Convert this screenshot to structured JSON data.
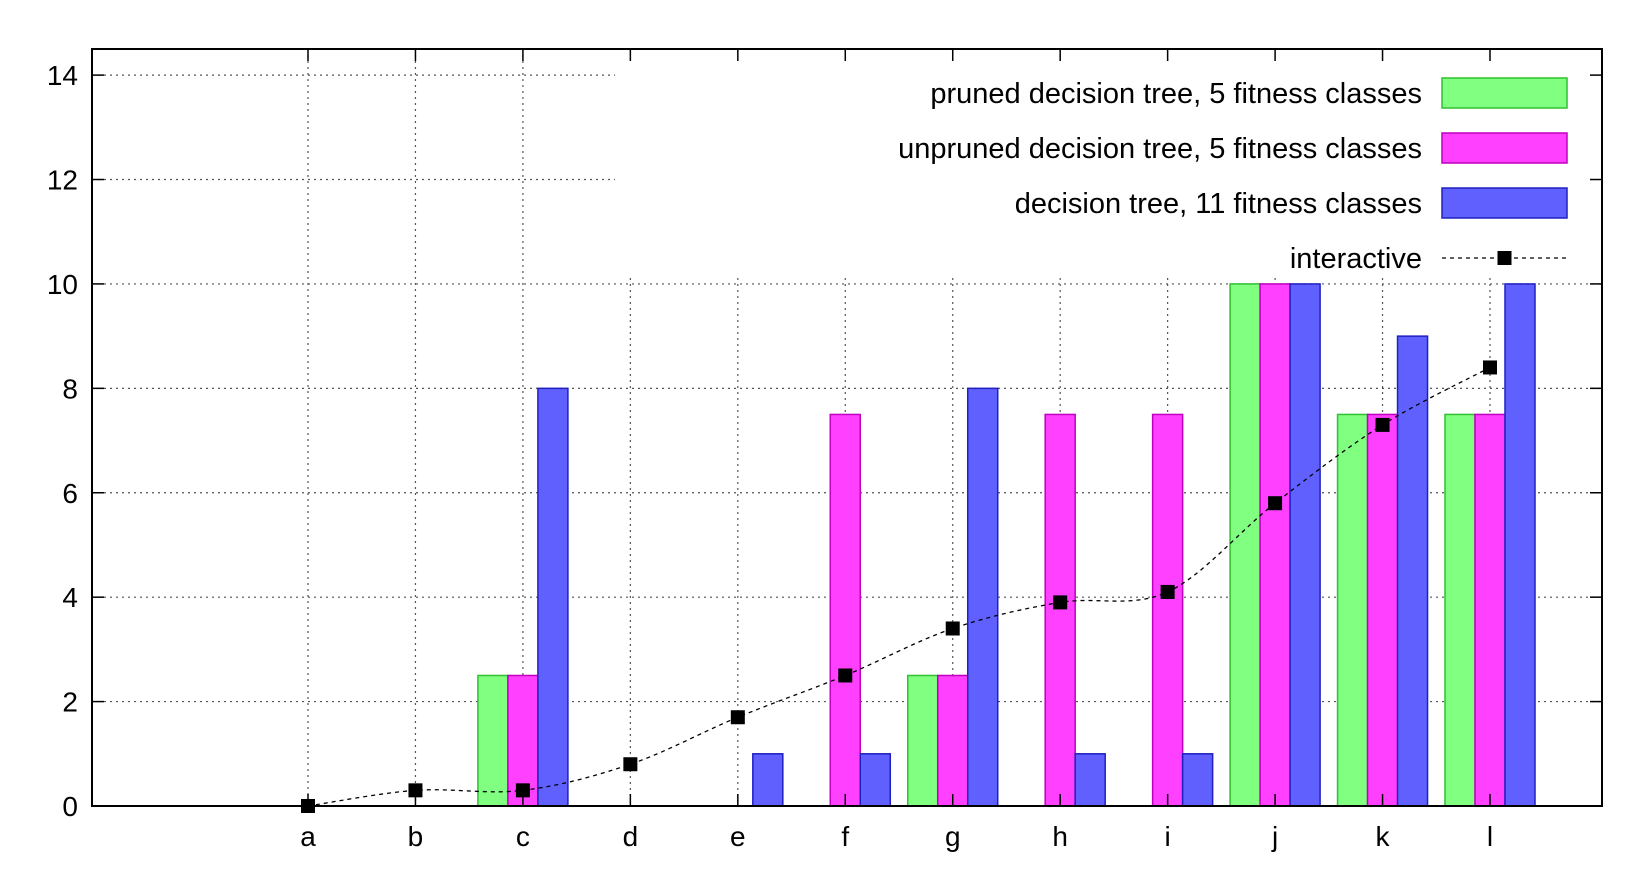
{
  "chart_data": {
    "type": "bar",
    "title": "",
    "xlabel": "",
    "ylabel": "",
    "categories": [
      "a",
      "b",
      "c",
      "d",
      "e",
      "f",
      "g",
      "h",
      "i",
      "j",
      "k",
      "l"
    ],
    "ylim": [
      0,
      14.5
    ],
    "yticks": [
      0,
      2,
      4,
      6,
      8,
      10,
      12,
      14
    ],
    "grid": true,
    "legend_position": "top-right",
    "series": [
      {
        "name": "pruned decision tree, 5 fitness classes",
        "kind": "bar",
        "color": "#80ff80",
        "values": [
          0,
          0,
          2.5,
          0,
          0,
          0,
          2.5,
          0,
          0,
          10,
          7.5,
          7.5
        ]
      },
      {
        "name": "unpruned decision tree, 5 fitness classes",
        "kind": "bar",
        "color": "#ff40ff",
        "values": [
          0,
          0,
          2.5,
          0,
          0,
          7.5,
          2.5,
          7.5,
          7.5,
          10,
          7.5,
          7.5
        ]
      },
      {
        "name": "decision tree, 11 fitness classes",
        "kind": "bar",
        "color": "#6060ff",
        "values": [
          0,
          0,
          8,
          0,
          1,
          1,
          8,
          1,
          1,
          10,
          9,
          10
        ]
      },
      {
        "name": "interactive",
        "kind": "line-points",
        "color": "#000000",
        "values": [
          0,
          0.3,
          0.3,
          0.8,
          1.7,
          2.5,
          3.4,
          3.9,
          4.1,
          5.8,
          7.3,
          8.4
        ]
      }
    ]
  }
}
